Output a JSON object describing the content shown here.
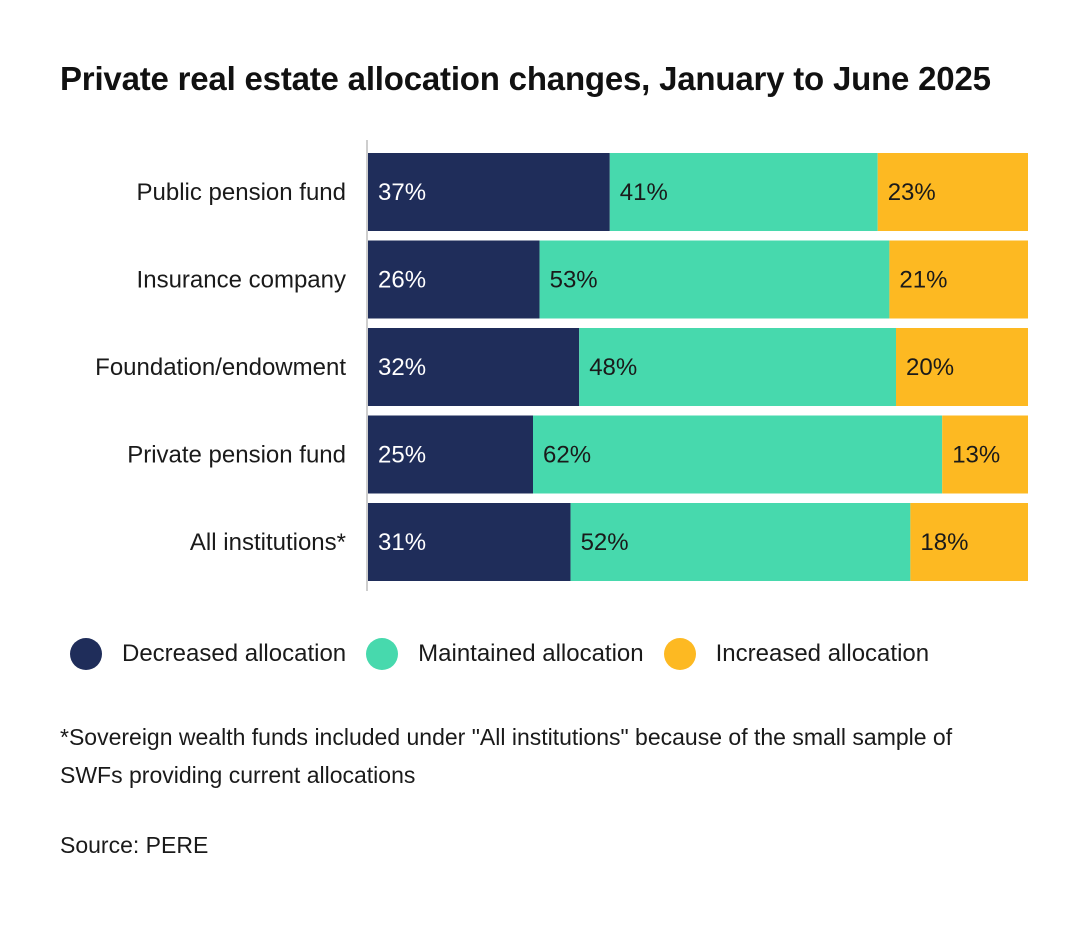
{
  "title": "Private real estate allocation changes, January to June 2025",
  "chart_data": {
    "type": "bar",
    "orientation": "horizontal",
    "stacked": true,
    "categories": [
      "Public pension fund",
      "Insurance company",
      "Foundation/endowment",
      "Private pension fund",
      "All institutions*"
    ],
    "series": [
      {
        "name": "Decreased allocation",
        "color": "#1f2d5a",
        "values": [
          37,
          26,
          32,
          25,
          31
        ],
        "labels": [
          "37%",
          "26%",
          "32%",
          "25%",
          "31%"
        ]
      },
      {
        "name": "Maintained allocation",
        "color": "#47d9ad",
        "values": [
          41,
          53,
          48,
          62,
          52
        ],
        "labels": [
          "41%",
          "53%",
          "48%",
          "62%",
          "52%"
        ]
      },
      {
        "name": "Increased allocation",
        "color": "#fdb922",
        "values": [
          23,
          21,
          20,
          13,
          18
        ],
        "labels": [
          "23%",
          "21%",
          "20%",
          "13%",
          "18%"
        ]
      }
    ],
    "value_unit": "%",
    "legend_position": "bottom",
    "grid": false
  },
  "footnote": "*Sovereign wealth funds included under \"All institutions\" because of the small sample of SWFs providing current allocations",
  "source": "Source: PERE"
}
